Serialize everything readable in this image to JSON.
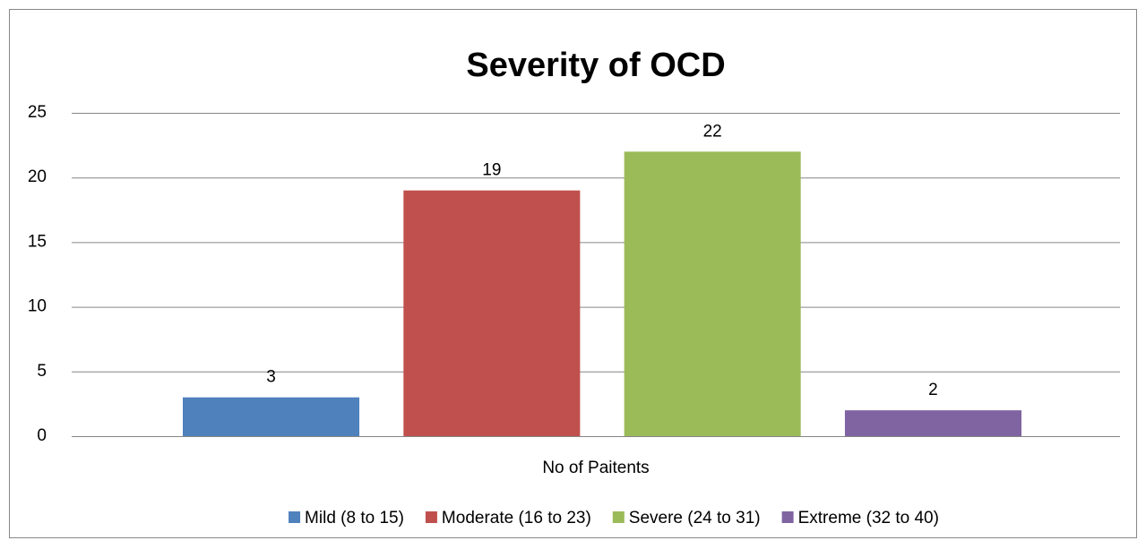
{
  "chart_data": {
    "type": "bar",
    "title": "Severity of OCD",
    "categories": [
      "No of Paitents"
    ],
    "series": [
      {
        "name": "Mild (8 to 15)",
        "color": "#4f81bd",
        "values": [
          3
        ]
      },
      {
        "name": "Moderate (16 to 23)",
        "color": "#c0504d",
        "values": [
          19
        ]
      },
      {
        "name": "Severe (24 to 31)",
        "color": "#9bbb59",
        "values": [
          22
        ]
      },
      {
        "name": "Extreme (32 to 40)",
        "color": "#8064a2",
        "values": [
          2
        ]
      }
    ],
    "ylim": [
      0,
      25
    ],
    "yticks": [
      0,
      5,
      10,
      15,
      20,
      25
    ],
    "grid": true,
    "legend": "bottom",
    "data_labels": true
  }
}
